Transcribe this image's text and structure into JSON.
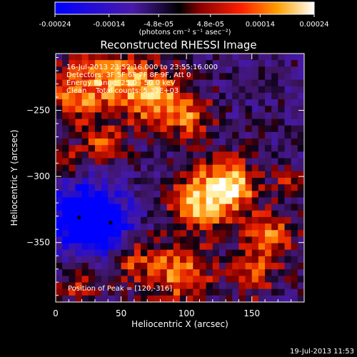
{
  "colorbar": {
    "tick_labels": [
      "-0.00024",
      "-0.00014",
      "-4.8e-05",
      "4.8e-05",
      "0.00014",
      "0.00024"
    ],
    "tick_values": [
      -0.00024,
      -0.00014,
      -4.8e-05,
      4.8e-05,
      0.00014,
      0.00024
    ],
    "range": [
      -0.00024,
      0.00024
    ],
    "unit_label": "(photons cm⁻² s⁻¹ asec⁻²)",
    "colors": [
      "#0000ff",
      "#4a1aa8",
      "#000000",
      "#8a0000",
      "#ff2000",
      "#ffa000",
      "#ffffff"
    ]
  },
  "chart_data": {
    "type": "heatmap",
    "title": "Reconstructed RHESSI Image",
    "xlabel": "Heliocentric X (arcsec)",
    "ylabel": "Heliocentric Y (arcsec)",
    "xlim": [
      0,
      190
    ],
    "ylim": [
      -395,
      -207
    ],
    "xticks": [
      0,
      50,
      100,
      150
    ],
    "yticks": [
      -250,
      -300,
      -350
    ],
    "annotations": [
      "16-Jul-2013 23:52:16.000 to 23:55:16.000",
      "Detectors: 3F 5F 6F 7F 8F 9F, Att 0",
      "Energy Range: 25.0 - 50.0 keV",
      "Clean    Total counts: 5.33E+03"
    ],
    "peak_label": "Position of Peak = [120,-316]",
    "peak": [
      120,
      -316
    ],
    "minimum_markers": [
      [
        18,
        -331
      ],
      [
        42,
        -335
      ]
    ],
    "grid": false,
    "legend": "none",
    "color_range": [
      -0.00024,
      0.00024
    ]
  },
  "footer": {
    "timestamp": "19-Jul-2013 11:53"
  }
}
